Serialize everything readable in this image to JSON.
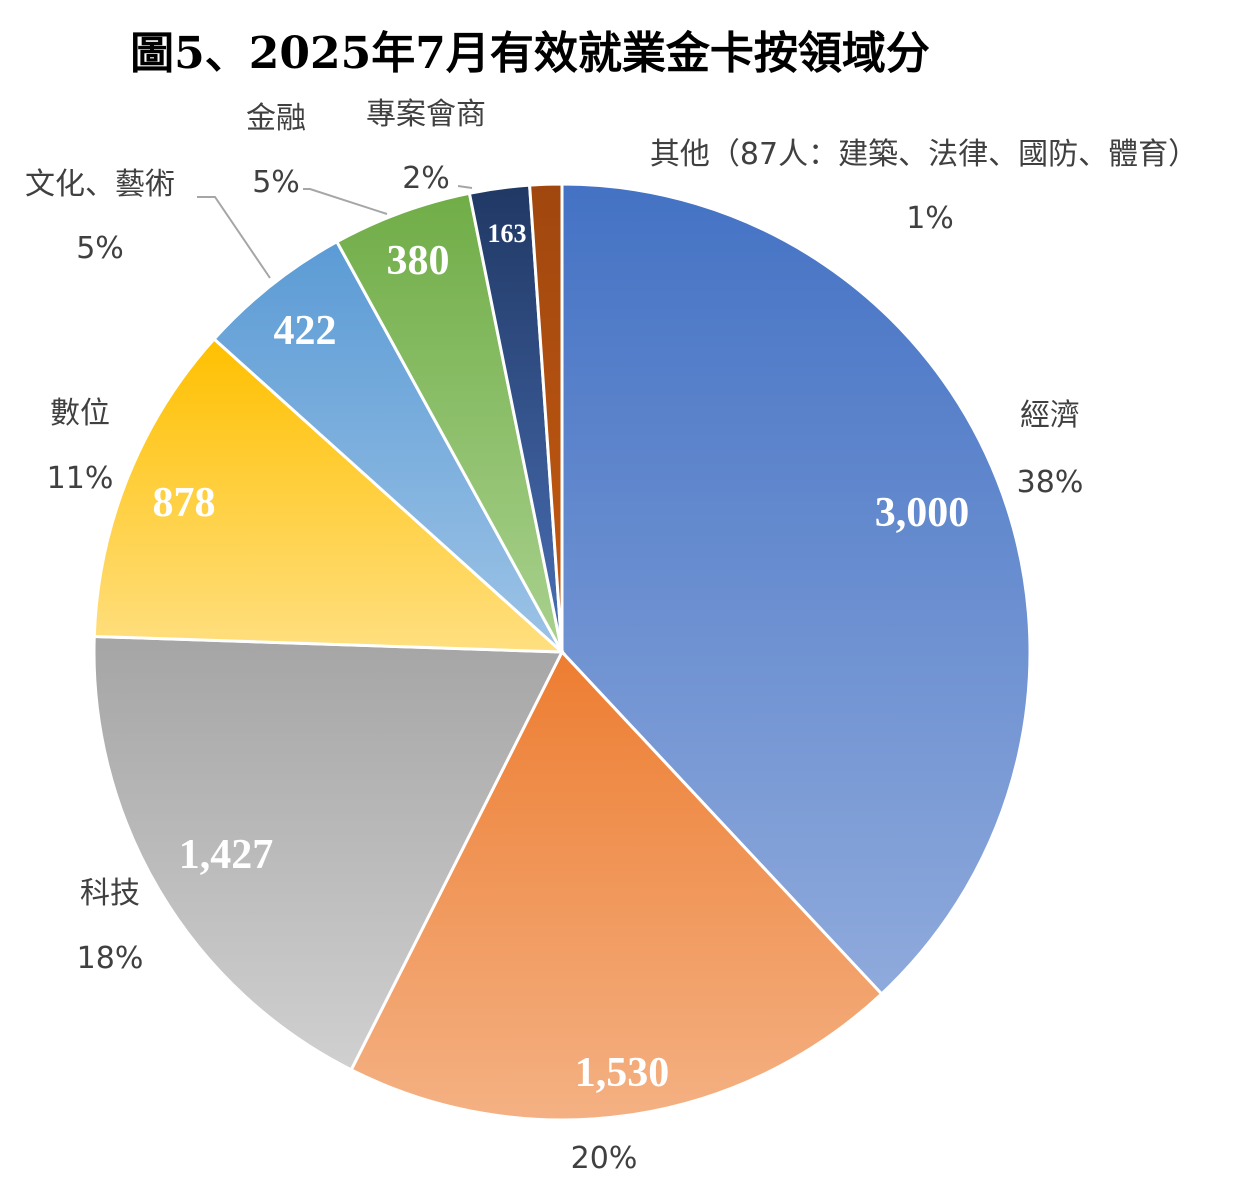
{
  "chart_data": {
    "type": "pie",
    "title": "圖5、2025年7月有效就業金卡按領域分",
    "slices": [
      {
        "name": "經濟",
        "value": 3000,
        "value_label": "3,000",
        "percent": "38%",
        "color_top": "#4472c4",
        "color_bottom": "#8faadc"
      },
      {
        "name": "",
        "value": 1530,
        "value_label": "1,530",
        "percent": "20%",
        "color_top": "#ed7d31",
        "color_bottom": "#f4b183"
      },
      {
        "name": "科技",
        "value": 1427,
        "value_label": "1,427",
        "percent": "18%",
        "color_top": "#a5a5a5",
        "color_bottom": "#d0d0d0"
      },
      {
        "name": "數位",
        "value": 878,
        "value_label": "878",
        "percent": "11%",
        "color_top": "#ffc000",
        "color_bottom": "#ffdf80"
      },
      {
        "name": "文化、藝術",
        "value": 422,
        "value_label": "422",
        "percent": "5%",
        "color_top": "#5b9bd5",
        "color_bottom": "#9dc3e6"
      },
      {
        "name": "金融",
        "value": 380,
        "value_label": "380",
        "percent": "5%",
        "color_top": "#70ad47",
        "color_bottom": "#a9d18e"
      },
      {
        "name": "專案會商",
        "value": 163,
        "value_label": "163",
        "percent": "2%",
        "color_top": "#203864",
        "color_bottom": "#4a6fb5"
      },
      {
        "name": "其他（87人：建築、法律、國防、體育）",
        "value": 87,
        "value_label": "",
        "percent": "1%",
        "color_top": "#a0470f",
        "color_bottom": "#c55a11"
      }
    ]
  }
}
